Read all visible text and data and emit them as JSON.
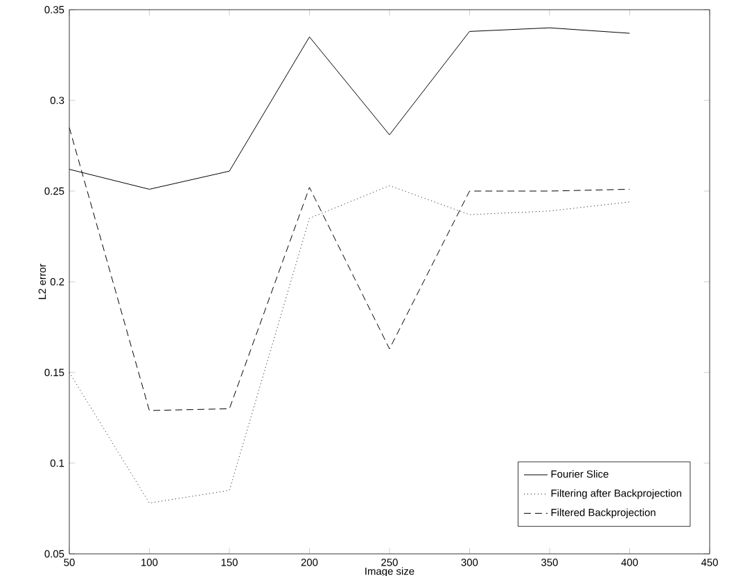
{
  "chart_data": {
    "type": "line",
    "xlabel": "Image size",
    "ylabel": "L2 error",
    "x": [
      50,
      100,
      150,
      200,
      250,
      300,
      350,
      400
    ],
    "series": [
      {
        "name": "Fourier Slice",
        "color": "#000000",
        "line_style": "solid",
        "values": [
          0.262,
          0.251,
          0.261,
          0.335,
          0.281,
          0.338,
          0.34,
          0.337
        ]
      },
      {
        "name": "Filtering after Backprojection",
        "color": "#000000",
        "line_style": "dotted",
        "values": [
          0.15,
          0.078,
          0.085,
          0.235,
          0.253,
          0.237,
          0.239,
          0.244
        ]
      },
      {
        "name": "Filtered Backprojection",
        "color": "#000000",
        "line_style": "dashed",
        "values": [
          0.285,
          0.129,
          0.13,
          0.252,
          0.163,
          0.25,
          0.25,
          0.251
        ]
      }
    ],
    "xlim": [
      50,
      450
    ],
    "ylim": [
      0.05,
      0.35
    ],
    "xticks": [
      50,
      100,
      150,
      200,
      250,
      300,
      350,
      400,
      450
    ],
    "yticks": [
      0.05,
      0.1,
      0.15,
      0.2,
      0.25,
      0.3,
      0.35
    ],
    "grid": false,
    "legend": "bottom right",
    "marker": "none"
  }
}
